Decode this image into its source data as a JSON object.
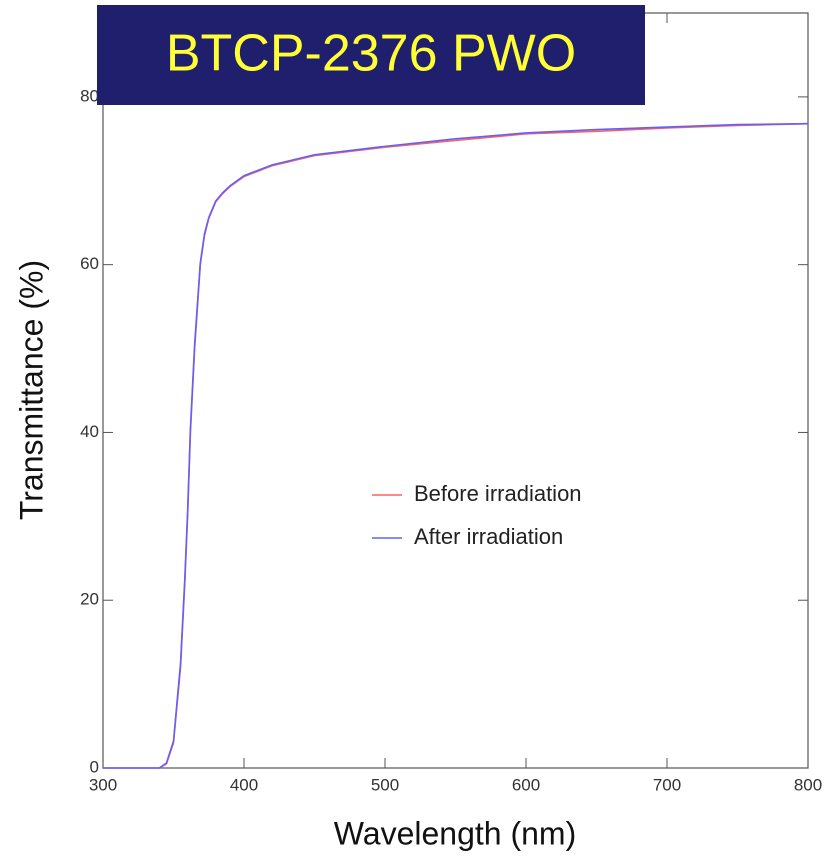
{
  "chart_data": {
    "type": "line",
    "title": "BTCP-2376 PWO",
    "x_label": "Wavelength (nm)",
    "y_label": "Transmittance (%)",
    "x": [
      300,
      320,
      340,
      345,
      350,
      355,
      358,
      360,
      362,
      365,
      369,
      372,
      375,
      380,
      385,
      390,
      400,
      420,
      450,
      500,
      550,
      600,
      650,
      700,
      750,
      800
    ],
    "series": [
      {
        "name": "Before irradiation",
        "color": "#ff6060",
        "values": [
          0,
          0,
          0,
          0.5,
          3,
          12,
          22,
          30,
          40,
          50,
          60,
          63.5,
          65.5,
          67.5,
          68.5,
          69.3,
          70.5,
          71.8,
          73,
          74,
          74.8,
          75.6,
          75.9,
          76.3,
          76.6,
          76.8
        ]
      },
      {
        "name": "After irradiation",
        "color": "#6060ff",
        "values": [
          0,
          0,
          0,
          0.6,
          3.2,
          12.5,
          22.5,
          30.5,
          40.5,
          50.5,
          60.2,
          63.7,
          65.6,
          67.6,
          68.6,
          69.4,
          70.6,
          71.9,
          73.1,
          74.1,
          75,
          75.7,
          76.1,
          76.4,
          76.7,
          76.8
        ]
      }
    ],
    "xlim": [
      300,
      800
    ],
    "xticks": [
      300,
      400,
      500,
      600,
      700,
      800
    ],
    "ylim": [
      0,
      90
    ],
    "yticks": [
      0,
      20,
      40,
      60,
      80
    ]
  }
}
